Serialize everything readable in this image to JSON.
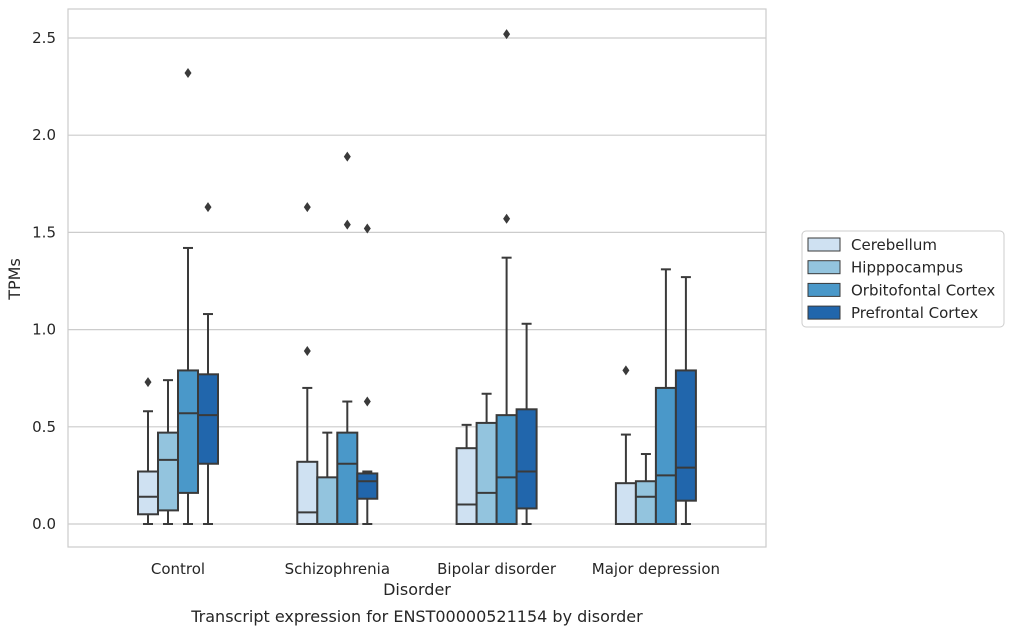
{
  "caption": "Transcript expression for ENST00000521154 by disorder",
  "colors": {
    "grid": "#cccccc",
    "frame": "#cccccc",
    "box_line": "#3a3a3a",
    "hue": [
      "#cfe1f2",
      "#93c4de",
      "#4a98c9",
      "#2166ac"
    ]
  },
  "chart_data": {
    "type": "box",
    "xlabel": "Disorder",
    "ylabel": "TPMs",
    "ylim": [
      -0.12,
      2.65
    ],
    "yticks": [
      0.0,
      0.5,
      1.0,
      1.5,
      2.0,
      2.5
    ],
    "ytick_labels": [
      "0.0",
      "0.5",
      "1.0",
      "1.5",
      "2.0",
      "2.5"
    ],
    "grid": true,
    "legend_position": "right",
    "categories": [
      "Control",
      "Schizophrenia",
      "Bipolar disorder",
      "Major depression"
    ],
    "series": [
      {
        "name": "Cerebellum",
        "boxes": [
          {
            "whislo": 0.0,
            "q1": 0.05,
            "med": 0.14,
            "q3": 0.27,
            "whishi": 0.58,
            "fliers": [
              0.73
            ]
          },
          {
            "whislo": 0.0,
            "q1": 0.0,
            "med": 0.06,
            "q3": 0.32,
            "whishi": 0.7,
            "fliers": [
              0.89,
              1.63
            ]
          },
          {
            "whislo": 0.0,
            "q1": 0.0,
            "med": 0.1,
            "q3": 0.39,
            "whishi": 0.51,
            "fliers": []
          },
          {
            "whislo": 0.0,
            "q1": 0.0,
            "med": 0.0,
            "q3": 0.21,
            "whishi": 0.46,
            "fliers": [
              0.79
            ]
          }
        ]
      },
      {
        "name": "Hipppocampus",
        "boxes": [
          {
            "whislo": 0.0,
            "q1": 0.07,
            "med": 0.33,
            "q3": 0.47,
            "whishi": 0.74,
            "fliers": []
          },
          {
            "whislo": 0.0,
            "q1": 0.0,
            "med": 0.0,
            "q3": 0.24,
            "whishi": 0.47,
            "fliers": []
          },
          {
            "whislo": 0.0,
            "q1": 0.0,
            "med": 0.16,
            "q3": 0.52,
            "whishi": 0.67,
            "fliers": []
          },
          {
            "whislo": 0.0,
            "q1": 0.0,
            "med": 0.14,
            "q3": 0.22,
            "whishi": 0.36,
            "fliers": []
          }
        ]
      },
      {
        "name": "Orbitofontal Cortex",
        "boxes": [
          {
            "whislo": 0.0,
            "q1": 0.16,
            "med": 0.57,
            "q3": 0.79,
            "whishi": 1.42,
            "fliers": [
              2.32
            ]
          },
          {
            "whislo": 0.0,
            "q1": 0.0,
            "med": 0.31,
            "q3": 0.47,
            "whishi": 0.63,
            "fliers": [
              1.54,
              1.89
            ]
          },
          {
            "whislo": 0.0,
            "q1": 0.0,
            "med": 0.24,
            "q3": 0.56,
            "whishi": 1.37,
            "fliers": [
              1.57,
              2.52
            ]
          },
          {
            "whislo": 0.0,
            "q1": 0.0,
            "med": 0.25,
            "q3": 0.7,
            "whishi": 1.31,
            "fliers": []
          }
        ]
      },
      {
        "name": "Prefrontal Cortex",
        "boxes": [
          {
            "whislo": 0.0,
            "q1": 0.31,
            "med": 0.56,
            "q3": 0.77,
            "whishi": 1.08,
            "fliers": [
              1.63
            ]
          },
          {
            "whislo": 0.0,
            "q1": 0.13,
            "med": 0.22,
            "q3": 0.26,
            "whishi": 0.27,
            "fliers": [
              0.63,
              1.52
            ]
          },
          {
            "whislo": 0.0,
            "q1": 0.08,
            "med": 0.27,
            "q3": 0.59,
            "whishi": 1.03,
            "fliers": []
          },
          {
            "whislo": 0.0,
            "q1": 0.12,
            "med": 0.29,
            "q3": 0.79,
            "whishi": 1.27,
            "fliers": []
          }
        ]
      }
    ]
  }
}
